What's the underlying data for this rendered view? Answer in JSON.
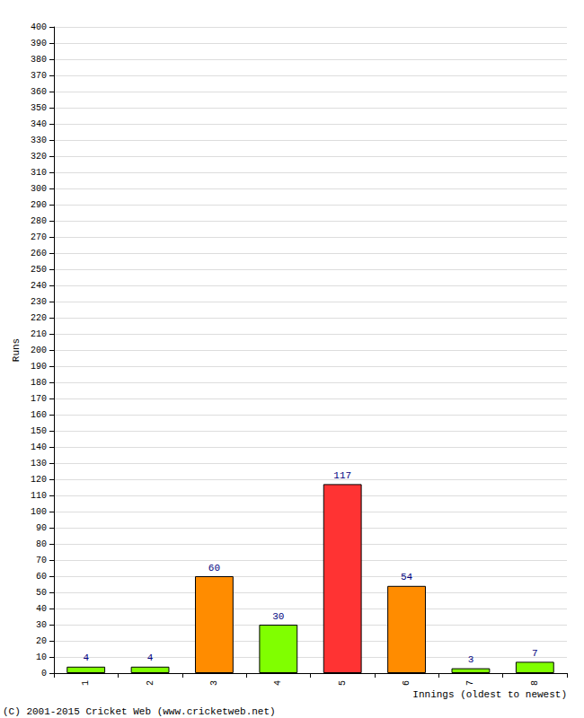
{
  "chart_data": {
    "type": "bar",
    "y_label": "Runs",
    "x_label": "Innings (oldest to newest)",
    "annotations": [
      "(C) 2001-2015 Cricket Web (www.cricketweb.net)"
    ],
    "categories": [
      "1",
      "2",
      "3",
      "4",
      "5",
      "6",
      "7",
      "8"
    ],
    "values": [
      4,
      4,
      60,
      30,
      117,
      54,
      3,
      7
    ],
    "colors": [
      "#80ff00",
      "#80ff00",
      "#ff8c00",
      "#80ff00",
      "#ff3333",
      "#ff8c00",
      "#80ff00",
      "#80ff00"
    ],
    "data_labels": true,
    "grid": true,
    "ylim": [
      0,
      400
    ],
    "yticks": [
      0,
      10,
      20,
      30,
      40,
      50,
      60,
      70,
      80,
      90,
      100,
      110,
      120,
      130,
      140,
      150,
      160,
      170,
      180,
      190,
      200,
      210,
      220,
      230,
      240,
      250,
      260,
      270,
      280,
      290,
      300,
      310,
      320,
      330,
      340,
      350,
      360,
      370,
      380,
      390,
      400
    ]
  }
}
